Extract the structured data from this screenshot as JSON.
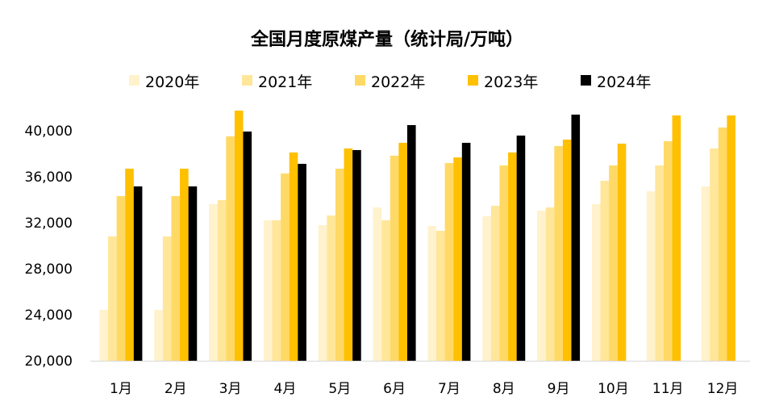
{
  "chart_data": {
    "type": "bar",
    "title": "全国月度原煤产量（统计局/万吨）",
    "xlabel": "",
    "ylabel": "",
    "ylim": [
      20000,
      42000
    ],
    "yticks": [
      20000,
      24000,
      28000,
      32000,
      36000,
      40000
    ],
    "ytick_labels": [
      "20,000",
      "24,000",
      "28,000",
      "32,000",
      "36,000",
      "40,000"
    ],
    "grid": false,
    "legend_position": "top",
    "categories": [
      "1月",
      "2月",
      "3月",
      "4月",
      "5月",
      "6月",
      "7月",
      "8月",
      "9月",
      "10月",
      "11月",
      "12月"
    ],
    "series": [
      {
        "name": "2020年",
        "color": "#FFF2CC",
        "values": [
          24420,
          24420,
          33610,
          32210,
          31790,
          33330,
          31720,
          32560,
          33050,
          33610,
          34740,
          35160
        ]
      },
      {
        "name": "2021年",
        "color": "#FFE699",
        "values": [
          30810,
          30810,
          33970,
          32210,
          32630,
          32210,
          31300,
          33470,
          33330,
          35650,
          36980,
          38460
        ]
      },
      {
        "name": "2022年",
        "color": "#FFD966",
        "values": [
          34320,
          34320,
          39510,
          36280,
          36700,
          37830,
          37190,
          36980,
          38670,
          36980,
          39090,
          40280
        ]
      },
      {
        "name": "2023年",
        "color": "#FFC000",
        "values": [
          36700,
          36700,
          41750,
          38110,
          38460,
          38950,
          37680,
          38110,
          39230,
          38880,
          41330,
          41330
        ]
      },
      {
        "name": "2024年",
        "color": "#000000",
        "values": [
          35160,
          35160,
          39930,
          37120,
          38320,
          40490,
          38950,
          39580,
          41400,
          null,
          null,
          null
        ]
      }
    ]
  }
}
